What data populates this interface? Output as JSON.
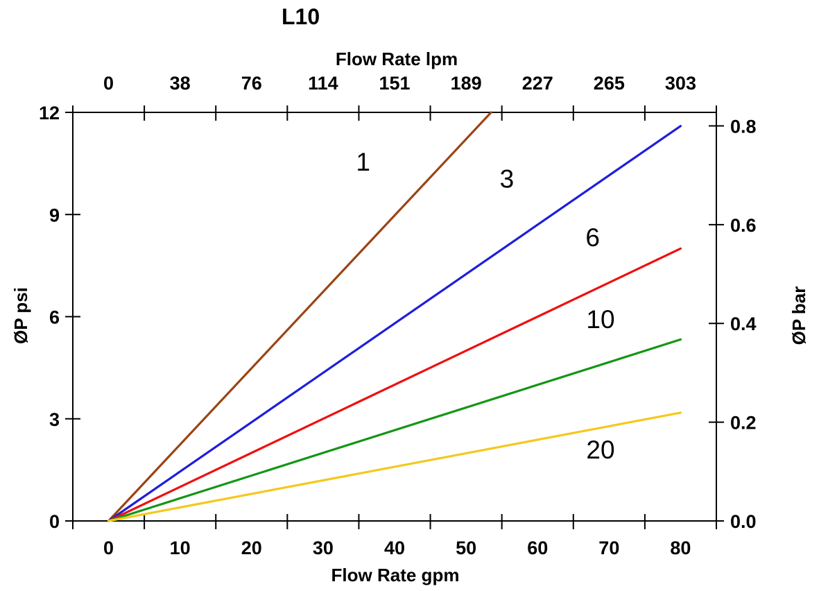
{
  "title": "L10",
  "axis_titles": {
    "top": "Flow Rate lpm",
    "bottom": "Flow Rate gpm",
    "left": "ØP psi",
    "right": "ØP bar"
  },
  "colors": {
    "axis": "#000000",
    "background": "#ffffff"
  },
  "chart_data": {
    "type": "line",
    "title": "L10",
    "xlabel_bottom": "Flow Rate gpm",
    "xlabel_top": "Flow Rate lpm",
    "ylabel_left": "ØP psi",
    "ylabel_right": "ØP bar",
    "x_axis_gpm": {
      "min": -5,
      "max": 85,
      "tick_positions": [
        -5,
        5,
        15,
        25,
        35,
        45,
        55,
        65,
        75,
        85
      ],
      "label_positions": [
        0,
        10,
        20,
        30,
        40,
        50,
        60,
        70,
        80
      ],
      "labels": [
        "0",
        "10",
        "20",
        "30",
        "40",
        "50",
        "60",
        "70",
        "80"
      ]
    },
    "x_axis_lpm": {
      "label_positions": [
        0,
        10,
        20,
        30,
        40,
        50,
        60,
        70,
        80
      ],
      "labels": [
        "0",
        "38",
        "76",
        "114",
        "151",
        "189",
        "227",
        "265",
        "303"
      ]
    },
    "y_axis_psi": {
      "min": 0,
      "max": 12,
      "tick_values": [
        0,
        3,
        6,
        9,
        12
      ],
      "labels": [
        "0",
        "3",
        "6",
        "9",
        "12"
      ]
    },
    "y_axis_bar": {
      "tick_values": [
        0.0,
        0.2,
        0.4,
        0.6,
        0.8
      ],
      "labels": [
        "0.0",
        "0.2",
        "0.4",
        "0.6",
        "0.8"
      ],
      "psi_per_bar": 14.5038
    },
    "grid": false,
    "legend": "inline curve labels (micron ratings)",
    "series": [
      {
        "name": "1",
        "color": "#9A4515",
        "points_gpm_psi": [
          [
            0,
            0
          ],
          [
            53.5,
            12
          ]
        ],
        "label": {
          "text": "1",
          "x_gpm": 35.6,
          "y_psi": 10.55
        }
      },
      {
        "name": "3",
        "color": "#1E1EDC",
        "points_gpm_psi": [
          [
            0,
            0
          ],
          [
            80,
            11.6
          ]
        ],
        "label": {
          "text": "3",
          "x_gpm": 55.7,
          "y_psi": 10.05
        }
      },
      {
        "name": "6",
        "color": "#EE1010",
        "points_gpm_psi": [
          [
            0,
            0
          ],
          [
            80,
            8.0
          ]
        ],
        "label": {
          "text": "6",
          "x_gpm": 67.7,
          "y_psi": 8.33
        }
      },
      {
        "name": "10",
        "color": "#149614",
        "points_gpm_psi": [
          [
            0,
            0
          ],
          [
            80,
            5.33
          ]
        ],
        "label": {
          "text": "10",
          "x_gpm": 68.8,
          "y_psi": 5.93
        }
      },
      {
        "name": "20",
        "color": "#F5C81E",
        "points_gpm_psi": [
          [
            0,
            0
          ],
          [
            80,
            3.18
          ]
        ],
        "label": {
          "text": "20",
          "x_gpm": 68.8,
          "y_psi": 2.1
        }
      }
    ]
  }
}
